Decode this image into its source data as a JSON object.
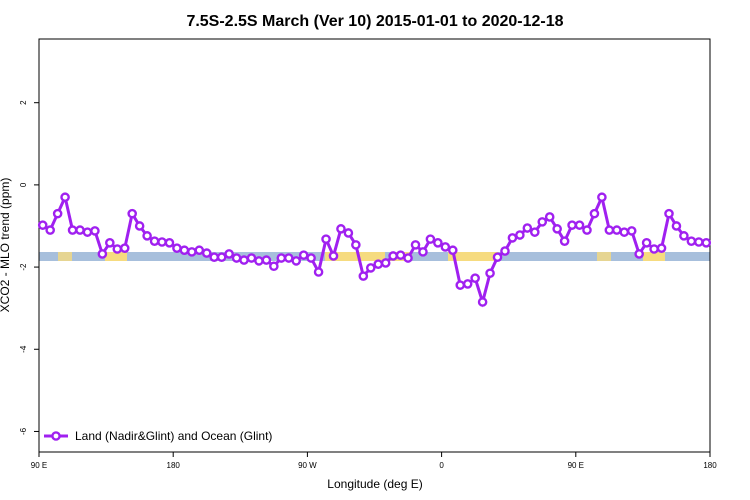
{
  "chart_data": {
    "type": "line",
    "title": "7.5S-2.5S March (Ver 10)   2015-01-01 to 2020-12-18",
    "x_label": "Longitude (deg E)",
    "y_label": "XCO2 - MLO trend (ppm)",
    "xlim": [
      90,
      540
    ],
    "ylim": [
      -6.5,
      3.55
    ],
    "xticks": [
      {
        "value": 90,
        "label": "90 E"
      },
      180,
      {
        "value": 270,
        "label": "90 W"
      },
      {
        "value": 360,
        "label": "0"
      },
      {
        "value": 450,
        "label": "90 E"
      },
      {
        "value": 540,
        "label": "180"
      }
    ],
    "yticks": [
      -6,
      -4,
      -2,
      0,
      2
    ],
    "legend": "bottom-left",
    "x": [
      92.5,
      97.5,
      102.5,
      107.5,
      112.5,
      117.5,
      122.5,
      127.5,
      132.5,
      137.5,
      142.5,
      147.5,
      152.5,
      157.5,
      162.5,
      167.5,
      172.5,
      177.5,
      182.5,
      187.5,
      192.5,
      197.5,
      202.5,
      207.5,
      212.5,
      217.5,
      222.5,
      227.5,
      232.5,
      237.5,
      242.5,
      247.5,
      252.5,
      257.5,
      262.5,
      267.5,
      272.5,
      277.5,
      282.5,
      287.5,
      292.5,
      297.5,
      302.5,
      307.5,
      312.5,
      317.5,
      322.5,
      327.5,
      332.5,
      337.5,
      342.5,
      347.5,
      352.5,
      357.5,
      362.5,
      367.5,
      372.5,
      377.5,
      382.5,
      387.5,
      392.5,
      397.5,
      402.5,
      407.5,
      412.5,
      417.5,
      422.5,
      427.5,
      432.5,
      437.5,
      442.5,
      447.5,
      452.5,
      457.5,
      462.5,
      467.5,
      472.5,
      477.5,
      482.5,
      487.5,
      492.5,
      497.5,
      502.5,
      507.5,
      512.5,
      517.5,
      522.5,
      527.5,
      532.5,
      537.5
    ],
    "series": [
      {
        "name": "Land (Nadir&Glint) and Ocean (Glint)",
        "color": "#a020f0",
        "values": [
          -0.98,
          -1.1,
          -0.7,
          -0.3,
          -1.1,
          -1.1,
          -1.15,
          -1.12,
          -1.68,
          -1.41,
          -1.56,
          -1.54,
          -0.7,
          -1.0,
          -1.24,
          -1.37,
          -1.39,
          -1.41,
          -1.54,
          -1.59,
          -1.63,
          -1.59,
          -1.66,
          -1.76,
          -1.76,
          -1.68,
          -1.78,
          -1.83,
          -1.78,
          -1.85,
          -1.83,
          -1.98,
          -1.78,
          -1.78,
          -1.85,
          -1.71,
          -1.78,
          -2.12,
          -1.32,
          -1.73,
          -1.07,
          -1.17,
          -1.46,
          -2.22,
          -2.02,
          -1.93,
          -1.9,
          -1.73,
          -1.71,
          -1.78,
          -1.46,
          -1.63,
          -1.32,
          -1.41,
          -1.51,
          -1.59,
          -2.44,
          -2.41,
          -2.27,
          -2.85,
          -2.15,
          -1.76,
          -1.61,
          -1.29,
          -1.22,
          -1.05,
          -1.15,
          -0.9,
          -0.78,
          -1.07,
          -1.37,
          -0.98,
          -0.98,
          -1.1,
          -0.7,
          -0.3,
          -1.1,
          -1.1,
          -1.15,
          -1.12,
          -1.68,
          -1.41,
          -1.56,
          -1.54,
          -0.7,
          -1.0,
          -1.24,
          -1.37,
          -1.39,
          -1.41
        ]
      }
    ]
  }
}
